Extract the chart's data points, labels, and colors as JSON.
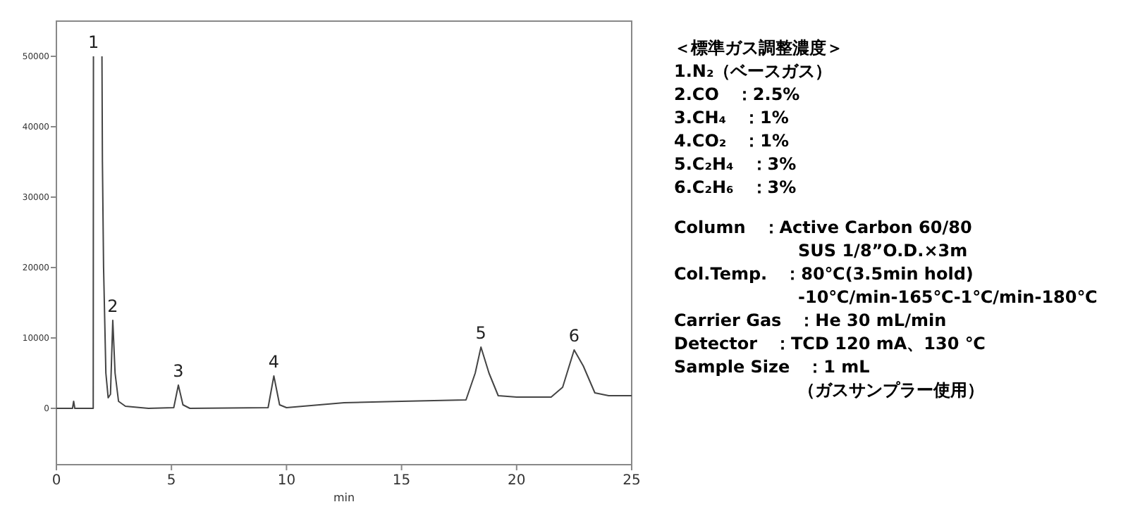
{
  "chart_data": [
    {
      "type": "line",
      "xlabel": "min",
      "xlim": [
        0,
        25
      ],
      "xticks": [
        0,
        5,
        10,
        15,
        20,
        25
      ],
      "ylim": [
        -8000,
        55000
      ],
      "yticks": [
        0,
        10000,
        20000,
        30000,
        40000,
        50000
      ],
      "grid": false,
      "color": "#444444",
      "x": [
        0,
        0.7,
        0.75,
        0.8,
        1.6,
        1.61,
        1.62,
        1.95,
        1.98,
        2.0,
        2.05,
        2.15,
        2.25,
        2.35,
        2.45,
        2.55,
        2.7,
        3.0,
        4,
        5.1,
        5.3,
        5.5,
        5.8,
        9.2,
        9.45,
        9.7,
        10,
        12.5,
        15,
        17.8,
        18.2,
        18.45,
        18.8,
        19.2,
        20,
        21.5,
        22,
        22.5,
        22.9,
        23.4,
        24,
        25
      ],
      "values": [
        0,
        0,
        1000,
        0,
        0,
        50000,
        null,
        null,
        50000,
        35000,
        20000,
        5000,
        1500,
        2000,
        12500,
        5000,
        1000,
        300,
        0,
        100,
        3300,
        500,
        0,
        100,
        4600,
        500,
        100,
        800,
        1000,
        1200,
        5000,
        8700,
        5000,
        1800,
        1600,
        1600,
        3000,
        8300,
        6000,
        2200,
        1800,
        1800
      ],
      "annotations": [
        {
          "text": "1",
          "x": 1.61,
          "y": 50000
        },
        {
          "text": "2",
          "x": 2.45,
          "y": 12500
        },
        {
          "text": "3",
          "x": 5.3,
          "y": 3300
        },
        {
          "text": "4",
          "x": 9.45,
          "y": 4600
        },
        {
          "text": "5",
          "x": 18.45,
          "y": 8700
        },
        {
          "text": "6",
          "x": 22.5,
          "y": 8300
        }
      ]
    },
    {
      "type": "other",
      "title": "＜標準ガス調整濃度＞",
      "annotations": [
        "1.N₂（ベースガス）",
        "2.CO　：2.5%",
        "3.CH₄　：1%",
        "4.CO₂　：1%",
        "5.C₂H₄　：3%",
        "6.C₂H₆　：3%"
      ]
    },
    {
      "type": "other",
      "annotations": [
        "Column　：Active Carbon 60/80",
        "SUS 1/8”O.D.×3m",
        "Col.Temp.　：80℃(3.5min hold)",
        "-10℃/min-165℃-1℃/min-180℃",
        "Carrier Gas　：He 30 mL/min",
        "Detector　：TCD 120 mA、130 ℃",
        "Sample Size　：1 mL",
        "（ガスサンプラー使用）"
      ]
    }
  ]
}
